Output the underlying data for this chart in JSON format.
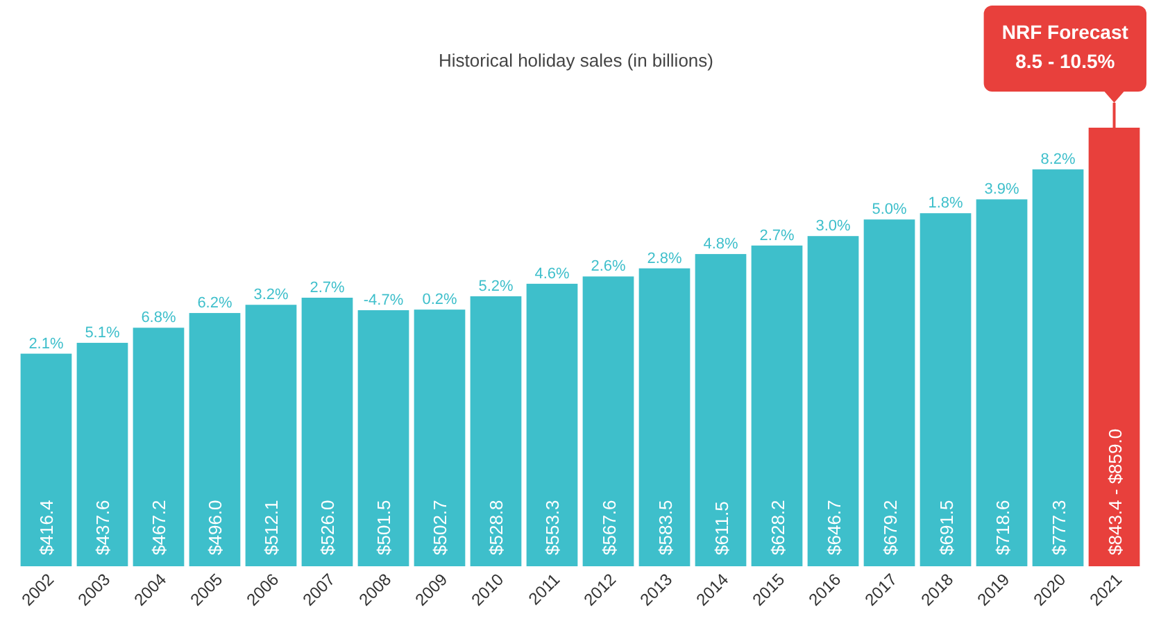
{
  "chart_data": {
    "type": "bar",
    "title": "Historical holiday sales (in billions)",
    "categories": [
      "2002",
      "2003",
      "2004",
      "2005",
      "2006",
      "2007",
      "2008",
      "2009",
      "2010",
      "2011",
      "2012",
      "2013",
      "2014",
      "2015",
      "2016",
      "2017",
      "2018",
      "2019",
      "2020",
      "2021"
    ],
    "values": [
      416.4,
      437.6,
      467.2,
      496.0,
      512.1,
      526.0,
      501.5,
      502.7,
      528.8,
      553.3,
      567.6,
      583.5,
      611.5,
      628.2,
      646.7,
      679.2,
      691.5,
      718.6,
      777.3,
      859.0
    ],
    "colors": [
      "#3ebfcb",
      "#3ebfcb",
      "#3ebfcb",
      "#3ebfcb",
      "#3ebfcb",
      "#3ebfcb",
      "#3ebfcb",
      "#3ebfcb",
      "#3ebfcb",
      "#3ebfcb",
      "#3ebfcb",
      "#3ebfcb",
      "#3ebfcb",
      "#3ebfcb",
      "#3ebfcb",
      "#3ebfcb",
      "#3ebfcb",
      "#3ebfcb",
      "#3ebfcb",
      "#e8403c"
    ],
    "value_labels": [
      "$416.4",
      "$437.6",
      "$467.2",
      "$496.0",
      "$512.1",
      "$526.0",
      "$501.5",
      "$502.7",
      "$528.8",
      "$553.3",
      "$567.6",
      "$583.5",
      "$611.5",
      "$628.2",
      "$646.7",
      "$679.2",
      "$691.5",
      "$718.6",
      "$777.3",
      null
    ],
    "annotations": [
      {
        "text": "2.1%",
        "x": "2002",
        "y": 416.4
      },
      {
        "text": "5.1%",
        "x": "2003",
        "y": 437.6
      },
      {
        "text": "6.8%",
        "x": "2004",
        "y": 467.2
      },
      {
        "text": "6.2%",
        "x": "2005",
        "y": 496.0
      },
      {
        "text": "3.2%",
        "x": "2006",
        "y": 512.1
      },
      {
        "text": "2.7%",
        "x": "2007",
        "y": 526.0
      },
      {
        "text": "-4.7%",
        "x": "2008",
        "y": 501.5
      },
      {
        "text": "0.2%",
        "x": "2009",
        "y": 502.7
      },
      {
        "text": "5.2%",
        "x": "2010",
        "y": 528.8
      },
      {
        "text": "4.6%",
        "x": "2011",
        "y": 553.3
      },
      {
        "text": "2.6%",
        "x": "2012",
        "y": 567.6
      },
      {
        "text": "2.8%",
        "x": "2013",
        "y": 583.5
      },
      {
        "text": "4.8%",
        "x": "2014",
        "y": 611.5
      },
      {
        "text": "2.7%",
        "x": "2015",
        "y": 628.2
      },
      {
        "text": "3.0%",
        "x": "2016",
        "y": 646.7
      },
      {
        "text": "5.0%",
        "x": "2017",
        "y": 679.2
      },
      {
        "text": "1.8%",
        "x": "2018",
        "y": 691.5
      },
      {
        "text": "3.9%",
        "x": "2019",
        "y": 718.6
      },
      {
        "text": "8.2%",
        "x": "2020",
        "y": 777.3
      },
      "$843.4 - $859.0",
      "NRF Forecast 8.5 - 10.5%"
    ]
  }
}
